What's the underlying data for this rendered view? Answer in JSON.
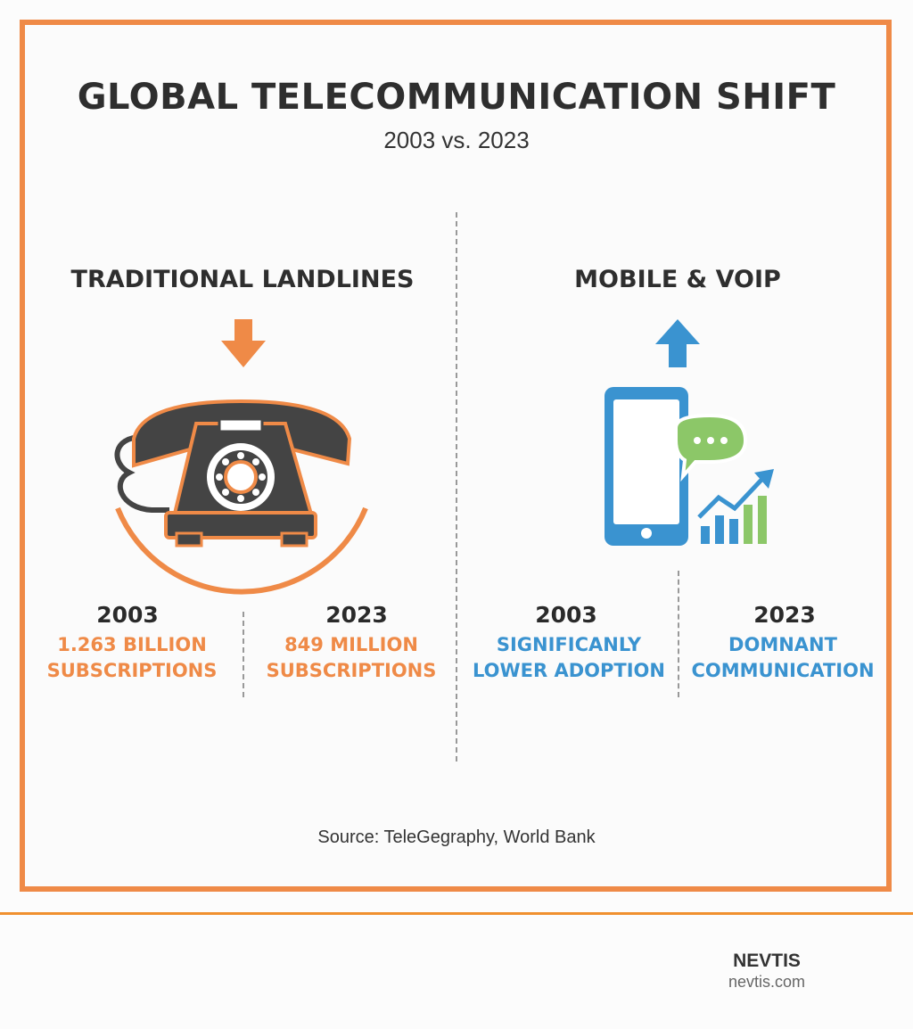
{
  "title": "GLOBAL TELECOMMUNICATION SHIFT",
  "subtitle": "2003 vs. 2023",
  "colors": {
    "frame": "#ef8a47",
    "landline": "#ef8a47",
    "mobile": "#3a93d0",
    "chat": "#8cc768",
    "dark": "#444444"
  },
  "left": {
    "heading": "TRADITIONAL LANDLINES",
    "trend_icon": "arrow-down-icon",
    "icon": "rotary-phone-icon",
    "stats": [
      {
        "year": "2003",
        "line1": "1.263 BILLION",
        "line2": "SUBSCRIPTIONS"
      },
      {
        "year": "2023",
        "line1": "849 MILLION",
        "line2": "SUBSCRIPTIONS"
      }
    ]
  },
  "right": {
    "heading": "MOBILE & VOIP",
    "trend_icon": "arrow-up-icon",
    "icon": "smartphone-chat-growth-icon",
    "stats": [
      {
        "year": "2003",
        "line1": "SIGNIFICANLY",
        "line2": "LOWER ADOPTION"
      },
      {
        "year": "2023",
        "line1": "DOMNANT",
        "line2": "COMMUNICATION"
      }
    ]
  },
  "source": "Source: TeleGegraphy, World Bank",
  "footer": {
    "brand": "NEVTIS",
    "site": "nevtis.com"
  }
}
